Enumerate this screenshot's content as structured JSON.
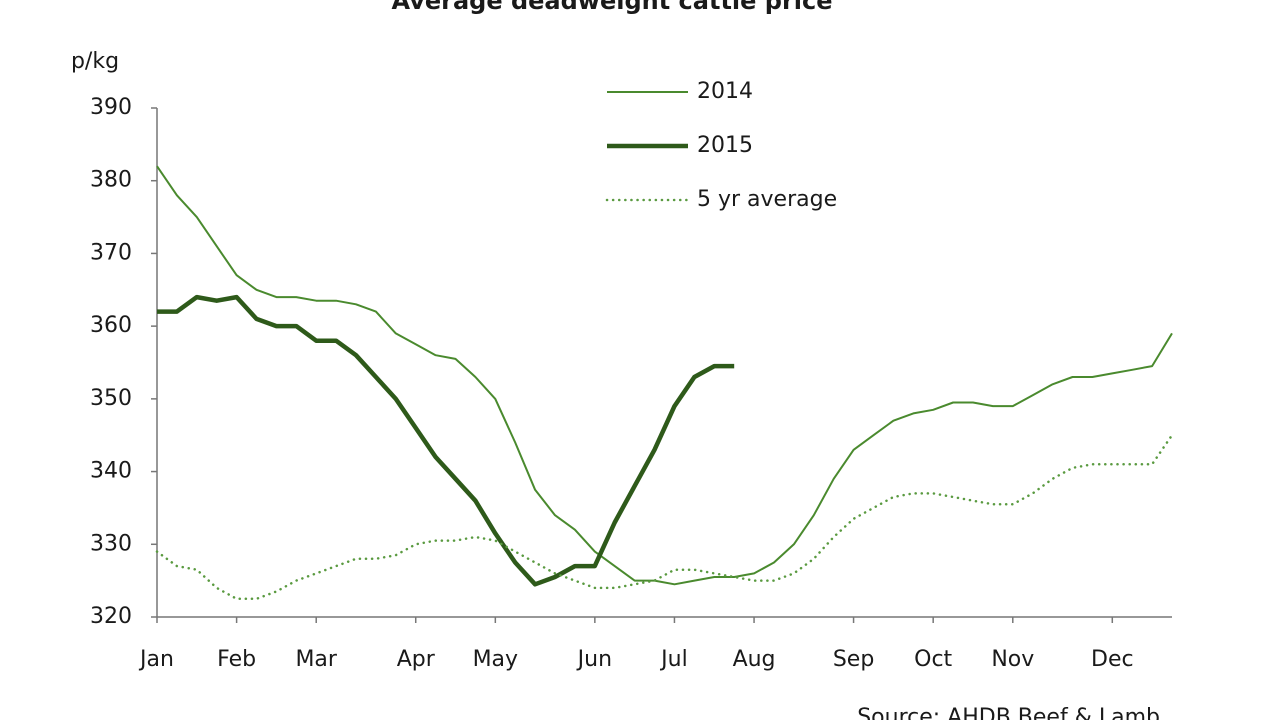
{
  "chart_data": {
    "type": "line",
    "title": "Average deadweight cattle price",
    "ylabel": "p/kg",
    "source": "Source: AHDB Beef & Lamb",
    "categories": [
      "Jan",
      null,
      null,
      null,
      "Feb",
      null,
      null,
      null,
      "Mar",
      null,
      null,
      null,
      null,
      "Apr",
      null,
      null,
      null,
      "May",
      null,
      null,
      null,
      null,
      "Jun",
      null,
      null,
      null,
      "Jul",
      null,
      null,
      null,
      "Aug",
      null,
      null,
      null,
      null,
      "Sep",
      null,
      null,
      null,
      "Oct",
      null,
      null,
      null,
      "Nov",
      null,
      null,
      null,
      null,
      "Dec",
      null,
      null,
      null
    ],
    "series": [
      {
        "name": "2014",
        "color": "#4a8a2e",
        "linewidth": 2,
        "linestyle": "solid",
        "values": [
          382,
          378,
          375,
          371,
          367,
          365,
          364,
          364,
          363.5,
          363.5,
          363,
          362,
          359,
          357.5,
          356,
          355.5,
          353,
          350,
          344,
          337.5,
          334,
          332,
          329,
          327,
          325,
          325,
          324.5,
          325,
          325.5,
          325.5,
          326,
          327.5,
          330,
          334,
          339,
          343,
          345,
          347,
          348,
          348.5,
          349.5,
          349.5,
          349,
          349,
          350.5,
          352,
          353,
          353,
          353.5,
          354,
          354.5,
          359
        ]
      },
      {
        "name": "2015",
        "color": "#2e5a1a",
        "linewidth": 4.5,
        "linestyle": "solid",
        "values": [
          362,
          362,
          364,
          363.5,
          364,
          361,
          360,
          360,
          358,
          358,
          356,
          353,
          350,
          346,
          342,
          339,
          336,
          331.5,
          327.5,
          324.5,
          325.5,
          327,
          327,
          333,
          338,
          343,
          349,
          353,
          354.5,
          354.5,
          null,
          null,
          null,
          null,
          null,
          null,
          null,
          null,
          null,
          null,
          null,
          null,
          null,
          null,
          null,
          null,
          null,
          null,
          null,
          null,
          null,
          null
        ]
      },
      {
        "name": "5 yr average",
        "color": "#5a9a40",
        "linewidth": 2.5,
        "linestyle": "dotted",
        "values": [
          329,
          327,
          326.5,
          324,
          322.5,
          322.5,
          323.5,
          325,
          326,
          327,
          328,
          328,
          328.5,
          330,
          330.5,
          330.5,
          331,
          330.5,
          329,
          327.5,
          326,
          325,
          324,
          324,
          324.5,
          325,
          326.5,
          326.5,
          326,
          325.5,
          325,
          325,
          326,
          328,
          331,
          333.5,
          335,
          336.5,
          337,
          337,
          336.5,
          336,
          335.5,
          335.5,
          337,
          339,
          340.5,
          341,
          341,
          341,
          341,
          345
        ]
      }
    ],
    "ylim": [
      320,
      390
    ],
    "yticks": [
      320,
      330,
      340,
      350,
      360,
      370,
      380,
      390
    ],
    "grid": false,
    "legend": "top"
  }
}
